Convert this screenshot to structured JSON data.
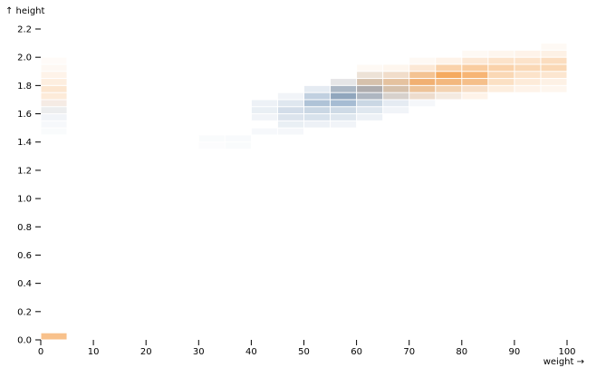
{
  "chart_data": {
    "type": "heatmap",
    "title": "",
    "xlabel": "weight →",
    "ylabel": "↑ height",
    "xlim": [
      0,
      100
    ],
    "ylim": [
      0,
      2.2
    ],
    "bin_width": 5,
    "bin_height": 0.05,
    "x_ticks": [
      "0",
      "10",
      "20",
      "30",
      "40",
      "50",
      "60",
      "70",
      "80",
      "90",
      "100"
    ],
    "y_ticks": [
      "0.0",
      "0.2",
      "0.4",
      "0.6",
      "0.8",
      "1.0",
      "1.2",
      "1.4",
      "1.6",
      "1.8",
      "2.0",
      "2.2"
    ],
    "grid": false,
    "legend": "none",
    "series": [
      {
        "color": "#4e79a7",
        "cells": [
          [
            0,
            1.45,
            0.03
          ],
          [
            0,
            1.5,
            0.05
          ],
          [
            0,
            1.55,
            0.08
          ],
          [
            0,
            1.6,
            0.1
          ],
          [
            0,
            1.65,
            0.06
          ],
          [
            30,
            1.35,
            0.02
          ],
          [
            30,
            1.4,
            0.03
          ],
          [
            35,
            1.35,
            0.03
          ],
          [
            35,
            1.4,
            0.04
          ],
          [
            40,
            1.45,
            0.05
          ],
          [
            40,
            1.55,
            0.08
          ],
          [
            40,
            1.6,
            0.12
          ],
          [
            40,
            1.65,
            0.1
          ],
          [
            45,
            1.45,
            0.06
          ],
          [
            45,
            1.5,
            0.12
          ],
          [
            45,
            1.55,
            0.2
          ],
          [
            45,
            1.6,
            0.25
          ],
          [
            45,
            1.65,
            0.18
          ],
          [
            45,
            1.7,
            0.08
          ],
          [
            50,
            1.5,
            0.1
          ],
          [
            50,
            1.55,
            0.22
          ],
          [
            50,
            1.6,
            0.3
          ],
          [
            50,
            1.65,
            0.45
          ],
          [
            50,
            1.7,
            0.35
          ],
          [
            50,
            1.75,
            0.15
          ],
          [
            55,
            1.5,
            0.08
          ],
          [
            55,
            1.55,
            0.18
          ],
          [
            55,
            1.6,
            0.28
          ],
          [
            55,
            1.65,
            0.5
          ],
          [
            55,
            1.7,
            0.65
          ],
          [
            55,
            1.75,
            0.5
          ],
          [
            55,
            1.8,
            0.15
          ],
          [
            60,
            1.55,
            0.1
          ],
          [
            60,
            1.6,
            0.18
          ],
          [
            60,
            1.65,
            0.3
          ],
          [
            60,
            1.7,
            0.5
          ],
          [
            60,
            1.75,
            0.55
          ],
          [
            60,
            1.8,
            0.3
          ],
          [
            60,
            1.85,
            0.1
          ],
          [
            65,
            1.6,
            0.08
          ],
          [
            65,
            1.65,
            0.15
          ],
          [
            65,
            1.7,
            0.25
          ],
          [
            65,
            1.75,
            0.3
          ],
          [
            65,
            1.8,
            0.2
          ],
          [
            65,
            1.85,
            0.08
          ],
          [
            70,
            1.65,
            0.06
          ],
          [
            70,
            1.7,
            0.1
          ],
          [
            70,
            1.75,
            0.12
          ],
          [
            70,
            1.8,
            0.1
          ],
          [
            70,
            1.85,
            0.05
          ],
          [
            75,
            1.7,
            0.06
          ],
          [
            75,
            1.75,
            0.06
          ],
          [
            75,
            1.8,
            0.05
          ],
          [
            80,
            1.75,
            0.04
          ],
          [
            80,
            1.8,
            0.04
          ]
        ]
      },
      {
        "color": "#f28e2b",
        "cells": [
          [
            0,
            0,
            0.55
          ],
          [
            0,
            1.6,
            0.04
          ],
          [
            0,
            1.65,
            0.1
          ],
          [
            0,
            1.7,
            0.18
          ],
          [
            0,
            1.75,
            0.22
          ],
          [
            0,
            1.8,
            0.15
          ],
          [
            0,
            1.85,
            0.1
          ],
          [
            0,
            1.9,
            0.06
          ],
          [
            0,
            1.95,
            0.03
          ],
          [
            55,
            1.7,
            0.05
          ],
          [
            55,
            1.75,
            0.08
          ],
          [
            55,
            1.8,
            0.06
          ],
          [
            60,
            1.7,
            0.1
          ],
          [
            60,
            1.75,
            0.2
          ],
          [
            60,
            1.8,
            0.3
          ],
          [
            60,
            1.85,
            0.15
          ],
          [
            60,
            1.9,
            0.05
          ],
          [
            65,
            1.7,
            0.15
          ],
          [
            65,
            1.75,
            0.3
          ],
          [
            65,
            1.8,
            0.4
          ],
          [
            65,
            1.85,
            0.22
          ],
          [
            65,
            1.9,
            0.08
          ],
          [
            70,
            1.7,
            0.2
          ],
          [
            70,
            1.75,
            0.45
          ],
          [
            70,
            1.8,
            0.65
          ],
          [
            70,
            1.85,
            0.5
          ],
          [
            70,
            1.9,
            0.2
          ],
          [
            70,
            1.95,
            0.05
          ],
          [
            75,
            1.7,
            0.12
          ],
          [
            75,
            1.75,
            0.35
          ],
          [
            75,
            1.8,
            0.6
          ],
          [
            75,
            1.85,
            0.75
          ],
          [
            75,
            1.9,
            0.4
          ],
          [
            75,
            1.95,
            0.1
          ],
          [
            80,
            1.7,
            0.1
          ],
          [
            80,
            1.75,
            0.25
          ],
          [
            80,
            1.8,
            0.55
          ],
          [
            80,
            1.85,
            0.65
          ],
          [
            80,
            1.9,
            0.45
          ],
          [
            80,
            1.95,
            0.2
          ],
          [
            80,
            2.0,
            0.05
          ],
          [
            85,
            1.75,
            0.15
          ],
          [
            85,
            1.8,
            0.28
          ],
          [
            85,
            1.85,
            0.35
          ],
          [
            85,
            1.9,
            0.4
          ],
          [
            85,
            1.95,
            0.25
          ],
          [
            85,
            2.0,
            0.08
          ],
          [
            90,
            1.75,
            0.1
          ],
          [
            90,
            1.8,
            0.18
          ],
          [
            90,
            1.85,
            0.25
          ],
          [
            90,
            1.9,
            0.35
          ],
          [
            90,
            1.95,
            0.25
          ],
          [
            90,
            2.0,
            0.1
          ],
          [
            95,
            1.75,
            0.08
          ],
          [
            95,
            1.8,
            0.12
          ],
          [
            95,
            1.85,
            0.22
          ],
          [
            95,
            1.9,
            0.35
          ],
          [
            95,
            1.95,
            0.3
          ],
          [
            95,
            2.0,
            0.12
          ],
          [
            95,
            2.05,
            0.05
          ]
        ]
      }
    ]
  }
}
